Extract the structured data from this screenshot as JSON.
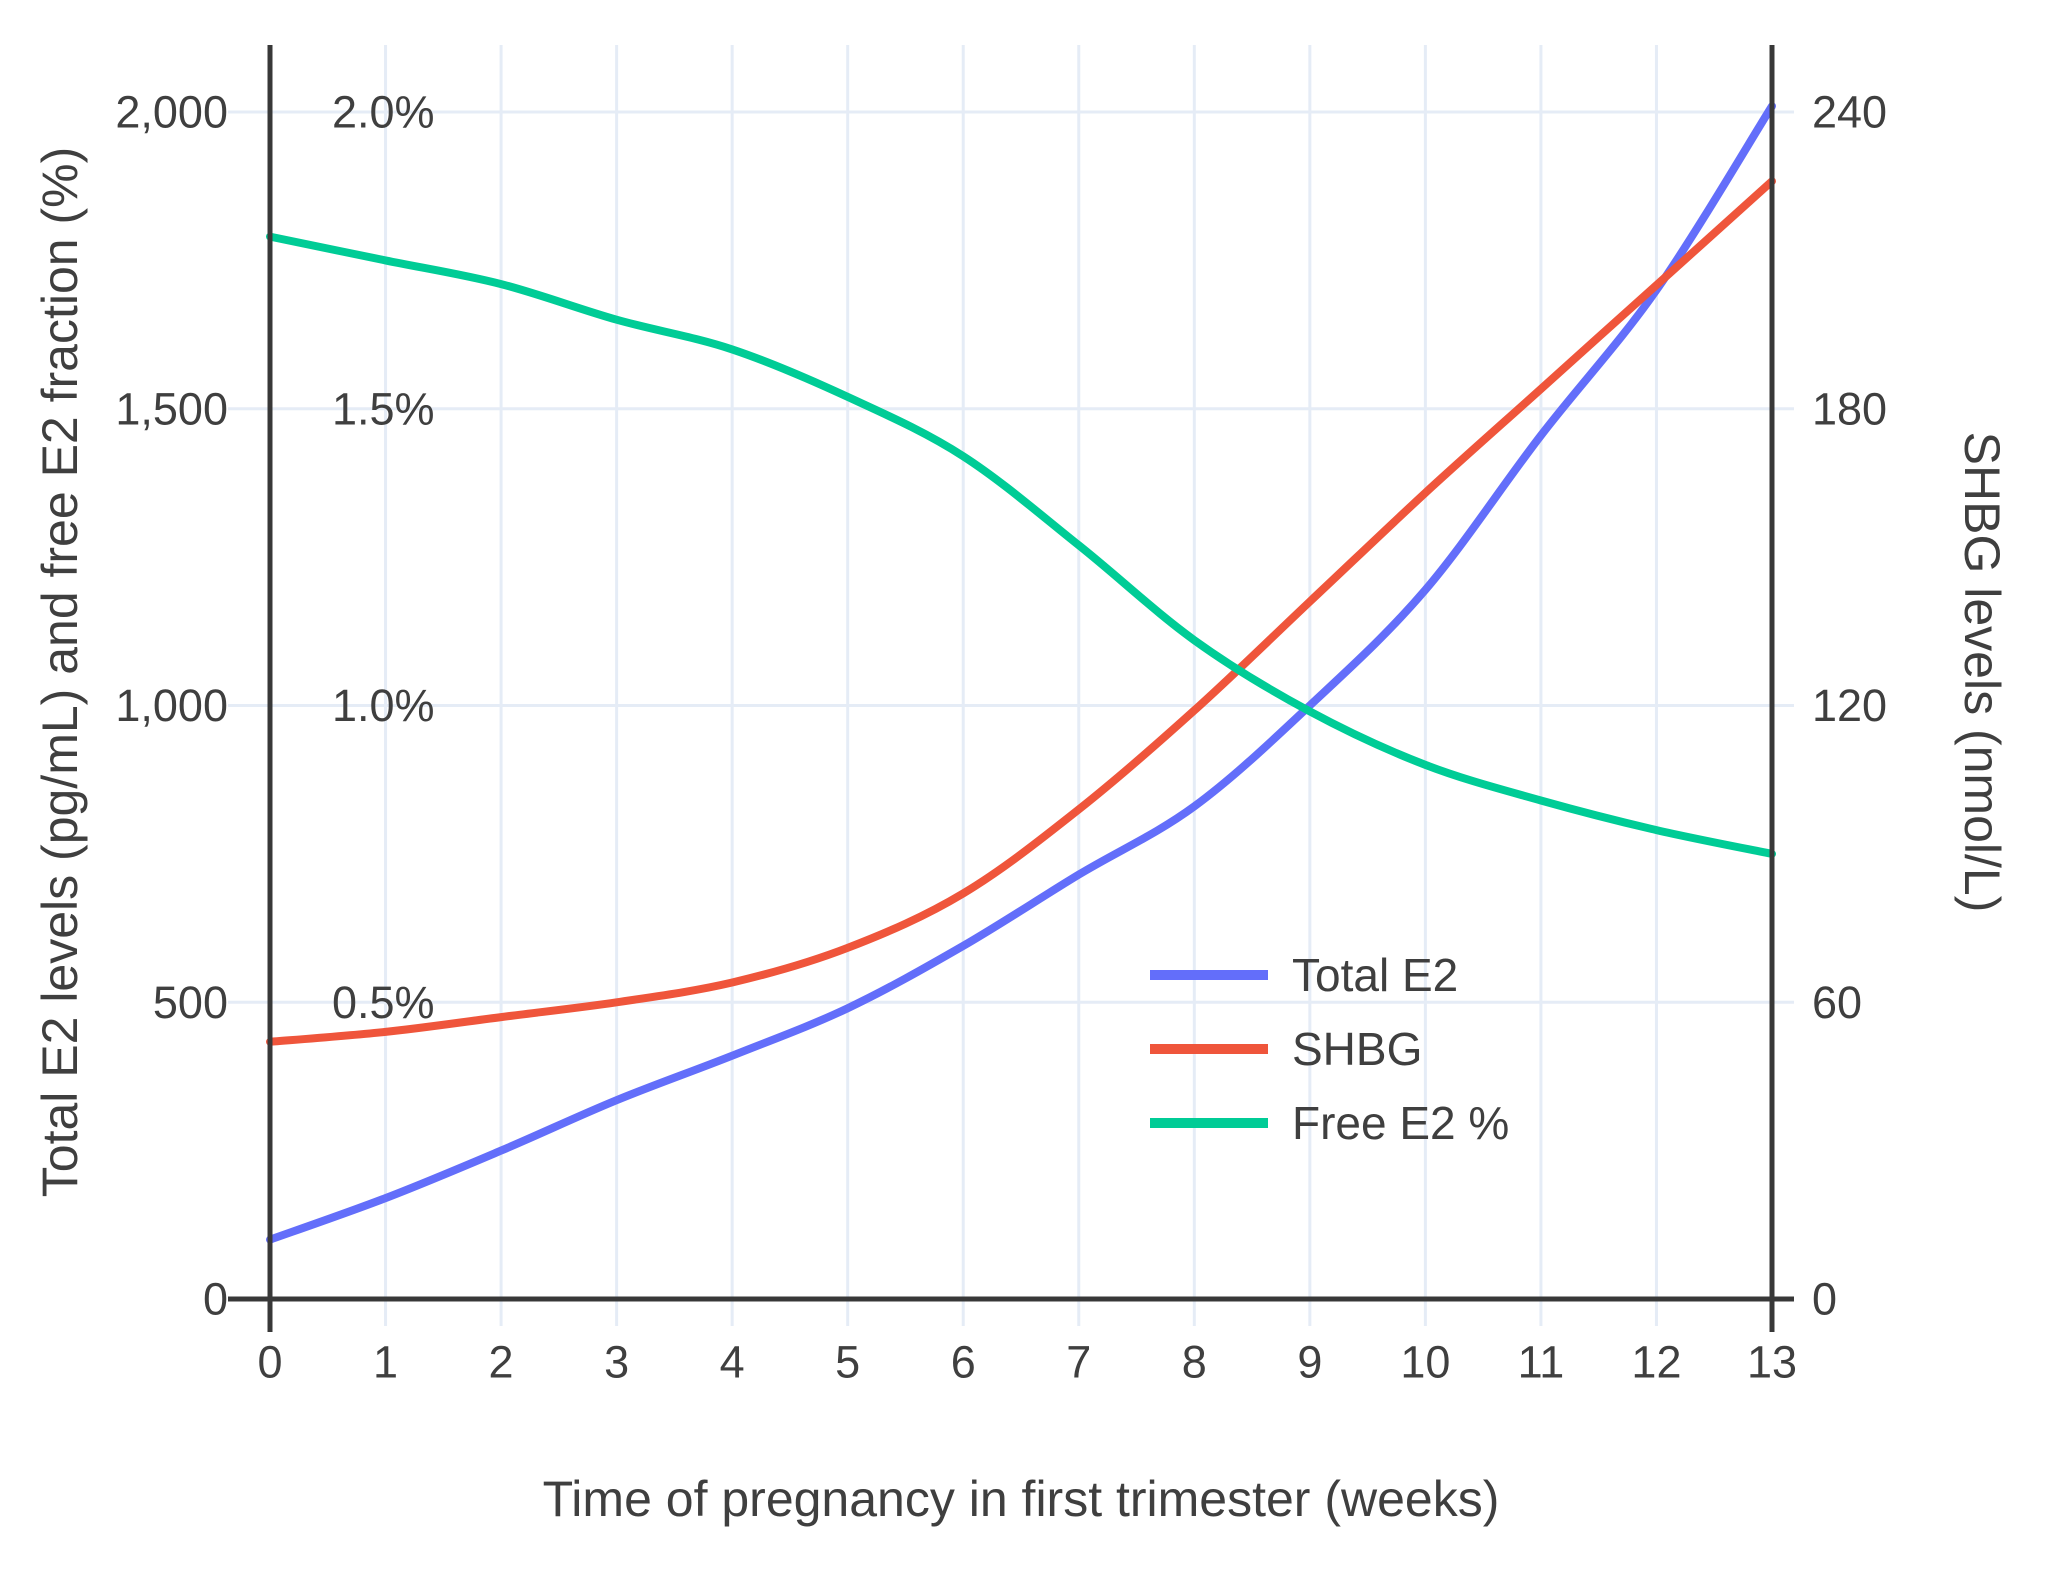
{
  "chart_data": {
    "type": "line",
    "title": "",
    "xlabel": "Time of pregnancy in first trimester (weeks)",
    "ylabel_left": "Total E2 levels (pg/mL) and free E2 fraction (%)",
    "ylabel_right": "SHBG levels (nmol/L)",
    "x_weeks": [
      0,
      1,
      2,
      3,
      4,
      5,
      6,
      7,
      8,
      9,
      10,
      11,
      12,
      13
    ],
    "x_tick_labels": [
      "0",
      "1",
      "2",
      "3",
      "4",
      "5",
      "6",
      "7",
      "8",
      "9",
      "10",
      "11",
      "12",
      "13"
    ],
    "left_axis": {
      "range": [
        0,
        2000
      ],
      "tick_values": [
        0,
        500,
        1000,
        1500,
        2000
      ],
      "tick_labels": [
        "0",
        "500",
        "1,000",
        "1,500",
        "2,000"
      ]
    },
    "left_percent_labels": {
      "tick_values": [
        500,
        1000,
        1500,
        2000
      ],
      "tick_labels": [
        "0.5%",
        "1.0%",
        "1.5%",
        "2.0%"
      ]
    },
    "right_axis": {
      "range": [
        0,
        240
      ],
      "tick_values": [
        0,
        60,
        120,
        180,
        240
      ],
      "tick_labels": [
        "0",
        "60",
        "120",
        "180",
        "240"
      ]
    },
    "grid": true,
    "legend_position": "inside-right-middle",
    "series": [
      {
        "name": "Total E2",
        "axis": "left",
        "unit": "pg/mL",
        "color": "#636EFA",
        "values": [
          100,
          170,
          250,
          335,
          410,
          490,
          595,
          715,
          830,
          1000,
          1195,
          1455,
          1700,
          2010
        ]
      },
      {
        "name": "SHBG",
        "axis": "right",
        "unit": "nmol/L",
        "color": "#EF553B",
        "values": [
          52,
          54,
          57,
          60,
          64,
          71,
          82,
          99,
          119,
          141,
          163,
          184,
          205,
          226
        ]
      },
      {
        "name": "Free E2 %",
        "axis": "left-percent",
        "unit": "%",
        "color": "#00CC96",
        "values": [
          1.79,
          1.75,
          1.71,
          1.65,
          1.6,
          1.52,
          1.42,
          1.27,
          1.11,
          0.99,
          0.9,
          0.84,
          0.79,
          0.75
        ]
      }
    ]
  },
  "style": {
    "grid_color": "#E5ECF6",
    "axis_color": "#383838",
    "text_color": "#3F3F3F"
  }
}
